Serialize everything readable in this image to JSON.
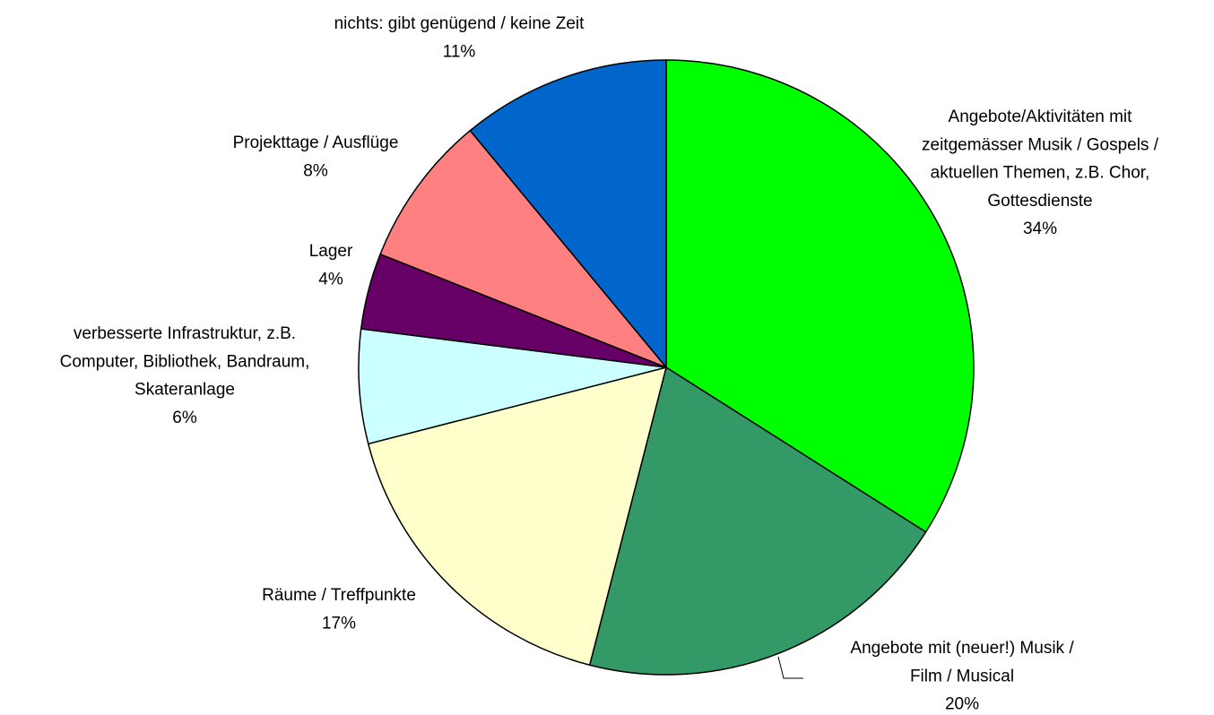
{
  "chart_data": {
    "type": "pie",
    "categories": [
      [
        "Angebote/Aktivitäten mit",
        "zeitgemässer Musik / Gospels /",
        "aktuellen Themen, z.B. Chor,",
        "Gottesdienste"
      ],
      [
        "Angebote mit (neuer!) Musik /",
        "Film / Musical"
      ],
      [
        "Räume / Treffpunkte"
      ],
      [
        "verbesserte Infrastruktur, z.B.",
        "Computer, Bibliothek, Bandraum,",
        "Skateranlage"
      ],
      [
        "Lager"
      ],
      [
        "Projekttage / Ausflüge"
      ],
      [
        "nichts: gibt genügend / keine Zeit"
      ]
    ],
    "values": [
      34,
      20,
      17,
      6,
      4,
      8,
      11
    ],
    "value_labels": [
      "34%",
      "20%",
      "17%",
      "6%",
      "4%",
      "8%",
      "11%"
    ],
    "colors": [
      "#00ff00",
      "#339966",
      "#ffffcc",
      "#ccffff",
      "#660066",
      "#ff8080",
      "#0066cc"
    ]
  }
}
